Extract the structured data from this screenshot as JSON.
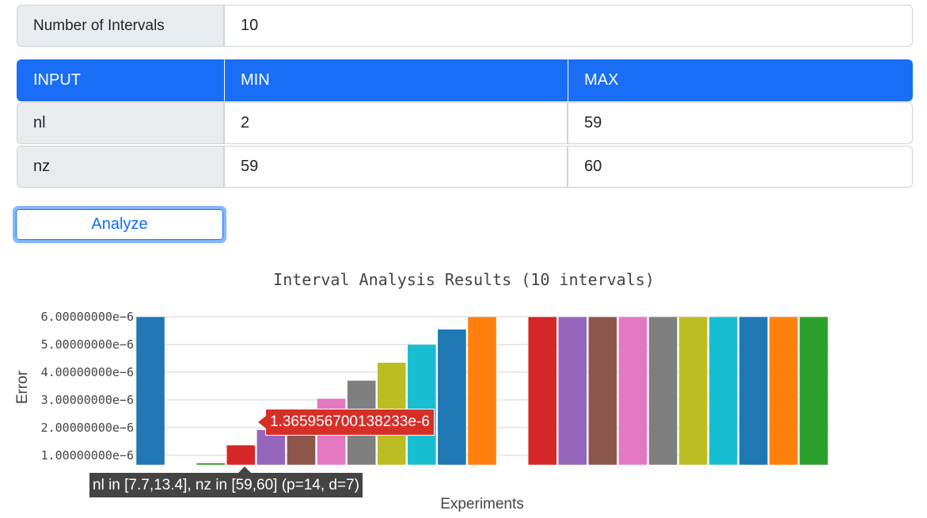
{
  "settings": {
    "intervals_label": "Number of Intervals",
    "intervals_value": "10"
  },
  "table": {
    "headers": [
      "INPUT",
      "MIN",
      "MAX"
    ],
    "rows": [
      {
        "name": "nl",
        "min": "2",
        "max": "59"
      },
      {
        "name": "nz",
        "min": "59",
        "max": "60"
      }
    ]
  },
  "analyze_label": "Analyze",
  "colors": {
    "accent": "#1a6ef5",
    "button": "#0d6efd",
    "focus_ring": "#86b7fe"
  },
  "chart_data": {
    "type": "bar",
    "title": "Interval Analysis Results (10 intervals)",
    "xlabel": "Experiments",
    "ylabel": "Error",
    "ylim": [
      6.5e-07,
      6e-06
    ],
    "yticks": [
      {
        "value": 1e-06,
        "label": "1.00000000e−6"
      },
      {
        "value": 2e-06,
        "label": "2.00000000e−6"
      },
      {
        "value": 3e-06,
        "label": "3.00000000e−6"
      },
      {
        "value": 4e-06,
        "label": "4.00000000e−6"
      },
      {
        "value": 5e-06,
        "label": "5.00000000e−6"
      },
      {
        "value": 6e-06,
        "label": "6.00000000e−6"
      }
    ],
    "bars": [
      {
        "value": 6e-06,
        "color": "#1f77b4"
      },
      {
        "value": null,
        "color": "#ff7f0e"
      },
      {
        "value": 7.2e-07,
        "color": "#2ca02c"
      },
      {
        "value": 1.365956700138233e-06,
        "color": "#d62728"
      },
      {
        "value": 1.92e-06,
        "color": "#9467bd"
      },
      {
        "value": 2.45e-06,
        "color": "#8c564b"
      },
      {
        "value": 3.05e-06,
        "color": "#e377c2"
      },
      {
        "value": 3.7e-06,
        "color": "#7f7f7f"
      },
      {
        "value": 4.35e-06,
        "color": "#bcbd22"
      },
      {
        "value": 5e-06,
        "color": "#17becf"
      },
      {
        "value": 5.55e-06,
        "color": "#1f77b4"
      },
      {
        "value": 6e-06,
        "color": "#ff7f0e"
      },
      {
        "value": null,
        "color": "#2ca02c"
      },
      {
        "value": 6e-06,
        "color": "#d62728"
      },
      {
        "value": 6e-06,
        "color": "#9467bd"
      },
      {
        "value": 6e-06,
        "color": "#8c564b"
      },
      {
        "value": 6e-06,
        "color": "#e377c2"
      },
      {
        "value": 6e-06,
        "color": "#7f7f7f"
      },
      {
        "value": 6e-06,
        "color": "#bcbd22"
      },
      {
        "value": 6e-06,
        "color": "#17becf"
      },
      {
        "value": 6e-06,
        "color": "#1f77b4"
      },
      {
        "value": 6e-06,
        "color": "#ff7f0e"
      },
      {
        "value": 6e-06,
        "color": "#2ca02c"
      }
    ],
    "hover": {
      "bar_index": 3,
      "value_label": "1.365956700138233e-6",
      "x_label": "nl in [7.7,13.4], nz in [59,60] (p=14, d=7)"
    }
  }
}
